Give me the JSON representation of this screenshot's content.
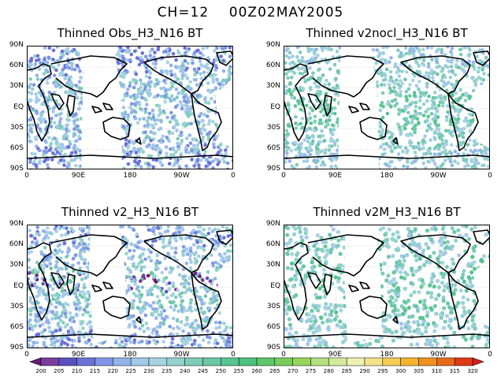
{
  "title": "CH=12    00Z02MAY2005",
  "panels": [
    {
      "title": "Thinned Obs_H3_N16 BT",
      "gap": "obs"
    },
    {
      "title": "Thinned v2nocl_H3_N16 BT",
      "gap": "nocl"
    },
    {
      "title": "Thinned v2_H3_N16 BT",
      "gap": "v2"
    },
    {
      "title": "Thinned v2M_H3_N16 BT",
      "gap": "v2m"
    }
  ],
  "lat_labels": [
    "90N",
    "60N",
    "30N",
    "EQ",
    "30S",
    "60S",
    "90S"
  ],
  "lon_labels": [
    "0",
    "90E",
    "180",
    "90W",
    "0"
  ],
  "colorbar": {
    "labels": [
      "200",
      "205",
      "210",
      "215",
      "220",
      "225",
      "230",
      "235",
      "240",
      "245",
      "250",
      "255",
      "260",
      "265",
      "270",
      "275",
      "280",
      "285",
      "290",
      "295",
      "300",
      "305",
      "310",
      "315",
      "320"
    ],
    "colors": [
      "#6a1a7a",
      "#7a3d9e",
      "#5b4fc0",
      "#6a72d8",
      "#7f96e6",
      "#93b3ec",
      "#a3c8ea",
      "#a8d2e2",
      "#94d1cf",
      "#7fcbbb",
      "#6bc7a6",
      "#58c490",
      "#4fc07d",
      "#5dc56b",
      "#78cc5c",
      "#96d65c",
      "#b4e07e",
      "#d2ea9c",
      "#eef0b0",
      "#f6e28a",
      "#f5cc54",
      "#f3b42e",
      "#ee921e",
      "#e86a18",
      "#e03a18",
      "#d81e1e"
    ]
  }
}
